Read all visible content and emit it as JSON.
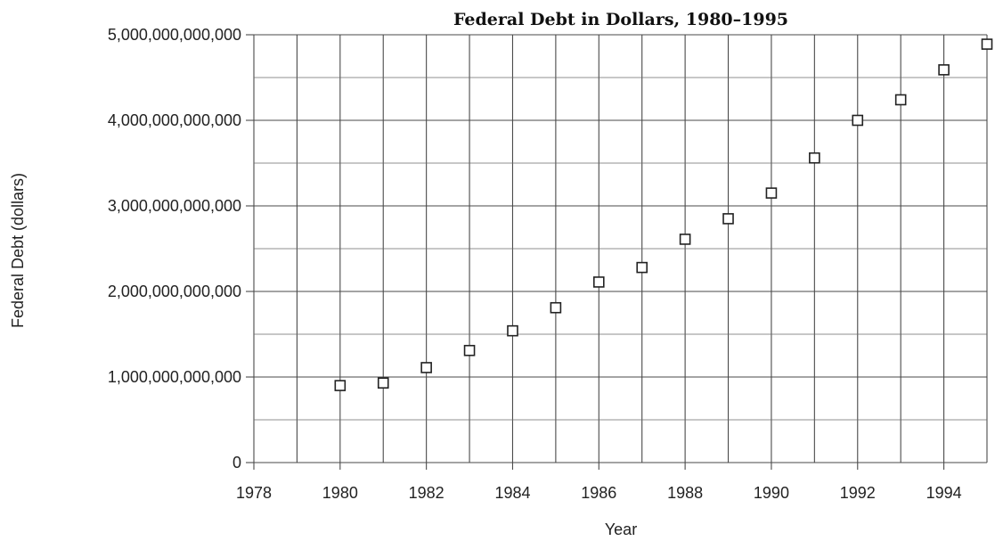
{
  "chart_data": {
    "type": "scatter",
    "title": "Federal Debt in Dollars, 1980–1995",
    "xlabel": "Year",
    "ylabel": "Federal Debt (dollars)",
    "xlim": [
      1978,
      1995
    ],
    "ylim": [
      0,
      5000000000000
    ],
    "x_ticks": [
      1978,
      1980,
      1982,
      1984,
      1986,
      1988,
      1990,
      1992,
      1994
    ],
    "x_tick_labels": [
      "1978",
      "1980",
      "1982",
      "1984",
      "1986",
      "1988",
      "1990",
      "1992",
      "1994"
    ],
    "y_ticks": [
      0,
      1000000000000,
      2000000000000,
      3000000000000,
      4000000000000,
      5000000000000
    ],
    "y_tick_labels": [
      "0",
      "1,000,000,000,000",
      "2,000,000,000,000",
      "3,000,000,000,000",
      "4,000,000,000,000",
      "5,000,000,000,000"
    ],
    "grid": true,
    "marker": "open-square",
    "x": [
      1980,
      1981,
      1982,
      1983,
      1984,
      1985,
      1986,
      1987,
      1988,
      1989,
      1990,
      1991,
      1992,
      1993,
      1994,
      1995
    ],
    "y": [
      900000000000,
      930000000000,
      1110000000000,
      1310000000000,
      1540000000000,
      1810000000000,
      2110000000000,
      2280000000000,
      2610000000000,
      2850000000000,
      3150000000000,
      3560000000000,
      4000000000000,
      4240000000000,
      4590000000000,
      4890000000000
    ]
  }
}
